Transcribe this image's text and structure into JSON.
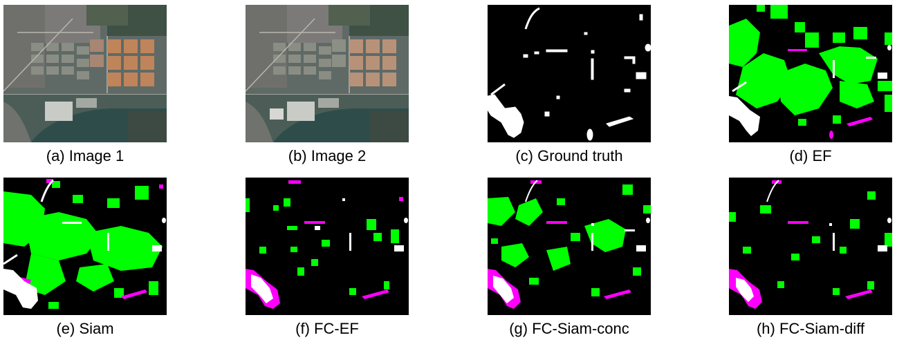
{
  "figure": {
    "panels": [
      {
        "id": "a",
        "caption": "(a) Image 1",
        "kind": "satellite"
      },
      {
        "id": "b",
        "caption": "(b) Image 2",
        "kind": "satellite"
      },
      {
        "id": "c",
        "caption": "(c) Ground truth",
        "kind": "mask"
      },
      {
        "id": "d",
        "caption": "(d) EF",
        "kind": "mask"
      },
      {
        "id": "e",
        "caption": "(e) Siam",
        "kind": "mask"
      },
      {
        "id": "f",
        "caption": "(f) FC-EF",
        "kind": "mask"
      },
      {
        "id": "g",
        "caption": "(g) FC-Siam-conc",
        "kind": "mask"
      },
      {
        "id": "h",
        "caption": "(h) FC-Siam-diff",
        "kind": "mask"
      }
    ],
    "colors": {
      "background": "#000000",
      "true_positive": "#ffffff",
      "false_positive": "#00ff00",
      "false_negative": "#ff00ff"
    }
  }
}
